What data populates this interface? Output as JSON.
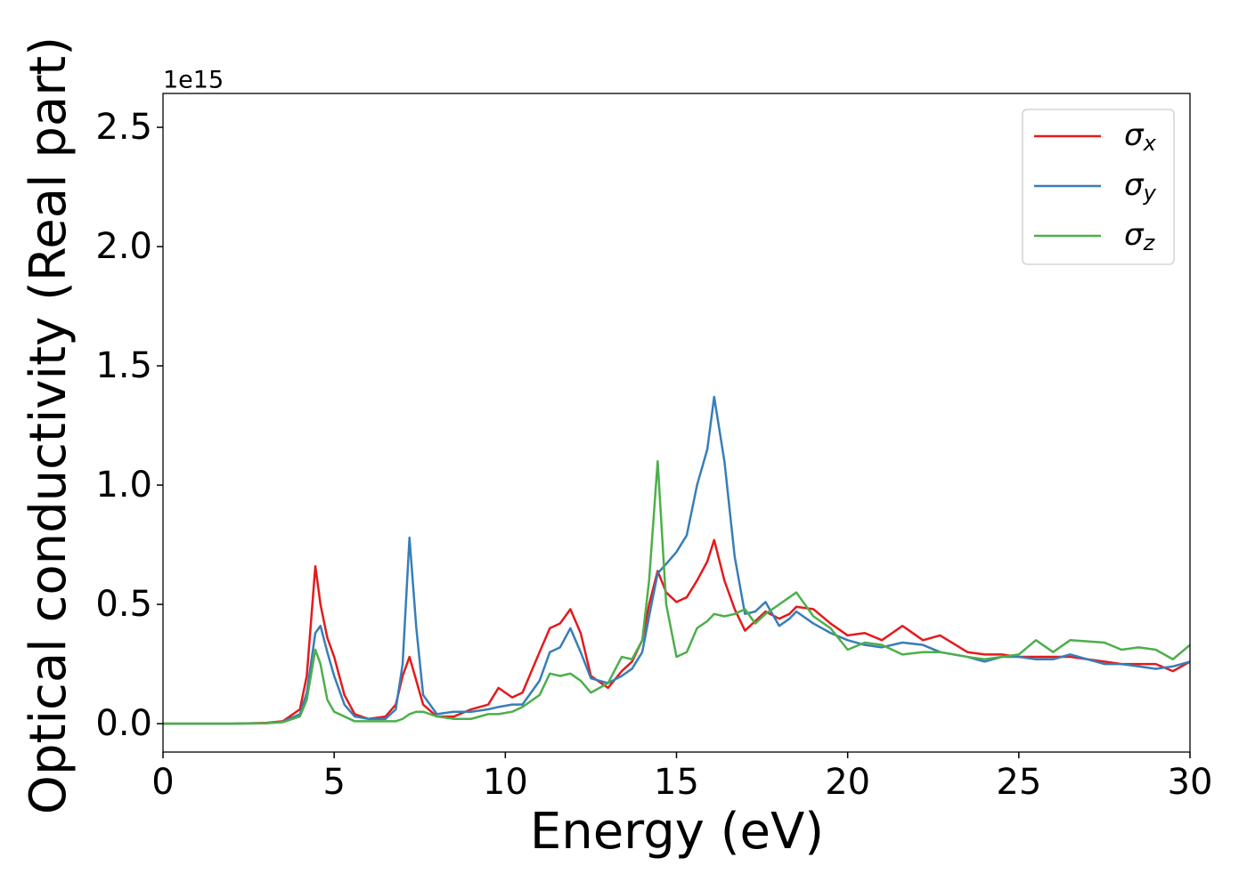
{
  "chart_data": {
    "type": "line",
    "xlabel": "Energy (eV)",
    "ylabel": "Optical conductivity (Real part)",
    "y_offset_label": "1e15",
    "x": [
      0,
      2,
      3,
      3.5,
      4,
      4.2,
      4.45,
      4.6,
      4.8,
      5,
      5.3,
      5.6,
      6,
      6.5,
      6.8,
      7,
      7.2,
      7.4,
      7.6,
      8,
      8.5,
      9,
      9.5,
      9.8,
      10.2,
      10.5,
      11,
      11.3,
      11.6,
      11.9,
      12.2,
      12.5,
      13,
      13.4,
      13.7,
      14,
      14.2,
      14.45,
      14.7,
      15,
      15.3,
      15.6,
      15.9,
      16.1,
      16.4,
      16.7,
      17,
      17.3,
      17.6,
      18,
      18.3,
      18.5,
      19,
      19.5,
      20,
      20.5,
      21,
      21.6,
      22.2,
      22.7,
      23.5,
      24,
      24.5,
      25,
      25.5,
      26,
      26.5,
      27.5,
      28,
      28.5,
      29,
      29.5,
      30
    ],
    "series": [
      {
        "name": "σx",
        "color": "#e41a1c",
        "values": [
          0,
          0,
          0.003,
          0.01,
          0.06,
          0.2,
          0.66,
          0.5,
          0.36,
          0.28,
          0.12,
          0.04,
          0.02,
          0.03,
          0.08,
          0.2,
          0.28,
          0.18,
          0.08,
          0.03,
          0.03,
          0.06,
          0.08,
          0.15,
          0.11,
          0.13,
          0.3,
          0.4,
          0.42,
          0.48,
          0.38,
          0.2,
          0.15,
          0.22,
          0.26,
          0.35,
          0.5,
          0.64,
          0.55,
          0.51,
          0.53,
          0.6,
          0.68,
          0.77,
          0.6,
          0.48,
          0.39,
          0.43,
          0.47,
          0.44,
          0.46,
          0.49,
          0.48,
          0.42,
          0.37,
          0.38,
          0.35,
          0.41,
          0.35,
          0.37,
          0.3,
          0.29,
          0.29,
          0.28,
          0.28,
          0.28,
          0.28,
          0.26,
          0.25,
          0.25,
          0.25,
          0.22,
          0.26
        ]
      },
      {
        "name": "σy",
        "color": "#377eb8",
        "values": [
          0,
          0,
          0.002,
          0.008,
          0.04,
          0.13,
          0.38,
          0.41,
          0.3,
          0.2,
          0.08,
          0.03,
          0.02,
          0.02,
          0.06,
          0.25,
          0.78,
          0.4,
          0.12,
          0.04,
          0.05,
          0.05,
          0.06,
          0.07,
          0.08,
          0.08,
          0.18,
          0.3,
          0.32,
          0.4,
          0.3,
          0.19,
          0.17,
          0.2,
          0.23,
          0.3,
          0.45,
          0.63,
          0.67,
          0.72,
          0.79,
          1.0,
          1.15,
          1.37,
          1.1,
          0.7,
          0.46,
          0.47,
          0.51,
          0.41,
          0.44,
          0.47,
          0.42,
          0.38,
          0.35,
          0.33,
          0.32,
          0.34,
          0.33,
          0.3,
          0.28,
          0.26,
          0.28,
          0.28,
          0.27,
          0.27,
          0.29,
          0.25,
          0.25,
          0.24,
          0.23,
          0.24,
          0.26
        ]
      },
      {
        "name": "σz",
        "color": "#4daf4a",
        "values": [
          0,
          0,
          0.002,
          0.006,
          0.03,
          0.1,
          0.31,
          0.25,
          0.1,
          0.05,
          0.03,
          0.01,
          0.01,
          0.01,
          0.01,
          0.02,
          0.04,
          0.05,
          0.05,
          0.03,
          0.02,
          0.02,
          0.04,
          0.04,
          0.05,
          0.07,
          0.12,
          0.21,
          0.2,
          0.21,
          0.18,
          0.13,
          0.17,
          0.28,
          0.27,
          0.35,
          0.6,
          1.1,
          0.5,
          0.28,
          0.3,
          0.4,
          0.43,
          0.46,
          0.45,
          0.46,
          0.48,
          0.42,
          0.46,
          0.5,
          0.53,
          0.55,
          0.45,
          0.4,
          0.31,
          0.34,
          0.33,
          0.29,
          0.3,
          0.3,
          0.28,
          0.27,
          0.28,
          0.29,
          0.35,
          0.3,
          0.35,
          0.34,
          0.31,
          0.32,
          0.31,
          0.27,
          0.33
        ]
      }
    ],
    "xlim": [
      0,
      30
    ],
    "ylim": [
      -0.119,
      2.642
    ],
    "xticks": [
      0,
      5,
      10,
      15,
      20,
      25,
      30
    ],
    "yticks": [
      {
        "value": 0,
        "label": "0.0"
      },
      0.5,
      {
        "value": 1,
        "label": "1.0"
      },
      1.5,
      {
        "value": 2,
        "label": "2.0"
      },
      2.5
    ],
    "legend": "upper right"
  }
}
